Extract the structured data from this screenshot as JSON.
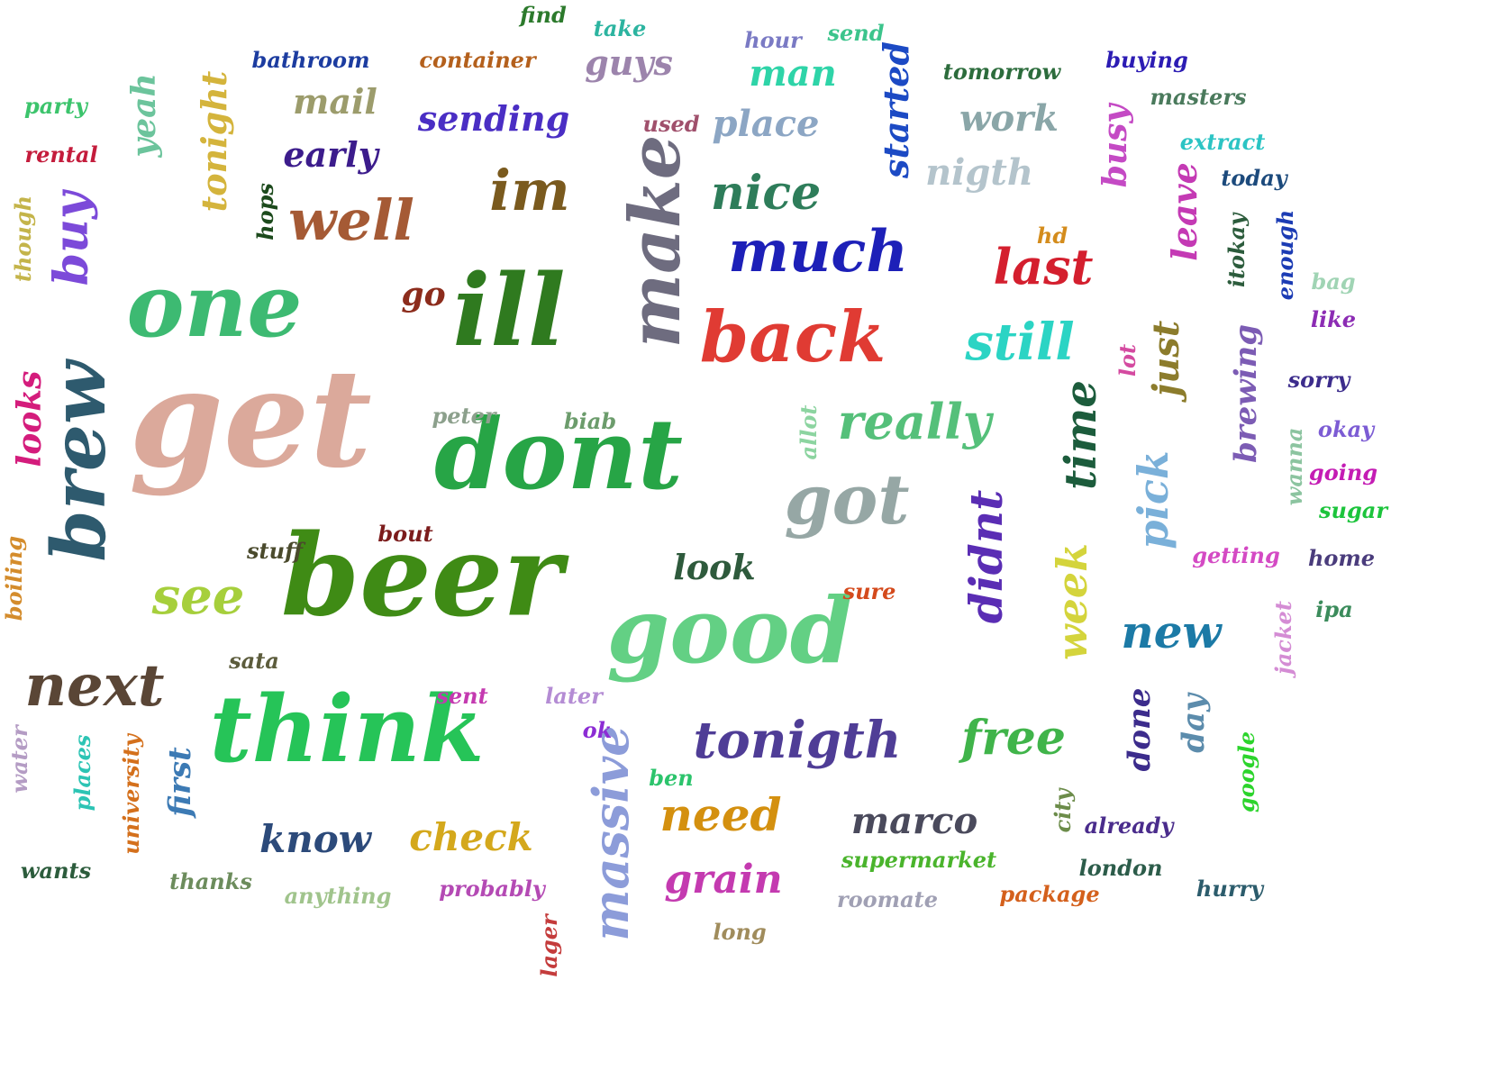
{
  "words": [
    {
      "text": "get",
      "color": "#dba99b",
      "orientation": "horizontal"
    },
    {
      "text": "beer",
      "color": "#3f8b15",
      "orientation": "horizontal"
    },
    {
      "text": "dont",
      "color": "#27a546",
      "orientation": "horizontal"
    },
    {
      "text": "think",
      "color": "#26c458",
      "orientation": "horizontal"
    },
    {
      "text": "good",
      "color": "#63d084",
      "orientation": "horizontal"
    },
    {
      "text": "one",
      "color": "#3dba72",
      "orientation": "horizontal"
    },
    {
      "text": "ill",
      "color": "#2f7a1f",
      "orientation": "horizontal"
    },
    {
      "text": "make",
      "color": "#6e6c7f",
      "orientation": "vertical"
    },
    {
      "text": "back",
      "color": "#e03b33",
      "orientation": "horizontal"
    },
    {
      "text": "brew",
      "color": "#2e5a6e",
      "orientation": "vertical"
    },
    {
      "text": "got",
      "color": "#96a7a5",
      "orientation": "horizontal"
    },
    {
      "text": "much",
      "color": "#1d20b8",
      "orientation": "horizontal"
    },
    {
      "text": "next",
      "color": "#5a4636",
      "orientation": "horizontal"
    },
    {
      "text": "well",
      "color": "#a55a35",
      "orientation": "horizontal"
    },
    {
      "text": "tonigth",
      "color": "#4f3d96",
      "orientation": "horizontal"
    },
    {
      "text": "im",
      "color": "#7a5a1e",
      "orientation": "horizontal"
    },
    {
      "text": "really",
      "color": "#55c07a",
      "orientation": "horizontal"
    },
    {
      "text": "see",
      "color": "#a6cf3c",
      "orientation": "horizontal"
    },
    {
      "text": "nice",
      "color": "#2e7d5a",
      "orientation": "horizontal"
    },
    {
      "text": "still",
      "color": "#2bd4c4",
      "orientation": "horizontal"
    },
    {
      "text": "new",
      "color": "#1c7aa6",
      "orientation": "horizontal"
    },
    {
      "text": "last",
      "color": "#d41f2e",
      "orientation": "horizontal"
    },
    {
      "text": "free",
      "color": "#40b44a",
      "orientation": "horizontal"
    },
    {
      "text": "need",
      "color": "#d4900f",
      "orientation": "horizontal"
    },
    {
      "text": "massive",
      "color": "#8c9cd9",
      "orientation": "vertical"
    },
    {
      "text": "didnt",
      "color": "#5a2db4",
      "orientation": "vertical"
    },
    {
      "text": "time",
      "color": "#1c5c3c",
      "orientation": "vertical"
    },
    {
      "text": "week",
      "color": "#d4d43c",
      "orientation": "vertical"
    },
    {
      "text": "pick",
      "color": "#7ab0d9",
      "orientation": "vertical"
    },
    {
      "text": "grain",
      "color": "#c43ab0",
      "orientation": "horizontal"
    },
    {
      "text": "know",
      "color": "#2c4a7a",
      "orientation": "horizontal"
    },
    {
      "text": "check",
      "color": "#d4a81c",
      "orientation": "horizontal"
    },
    {
      "text": "marco",
      "color": "#4a4a5c",
      "orientation": "horizontal"
    },
    {
      "text": "look",
      "color": "#2e5a3c",
      "orientation": "horizontal"
    },
    {
      "text": "man",
      "color": "#2ed4a8",
      "orientation": "horizontal"
    },
    {
      "text": "place",
      "color": "#8ca6c4",
      "orientation": "horizontal"
    },
    {
      "text": "work",
      "color": "#8aa6a8",
      "orientation": "horizontal"
    },
    {
      "text": "nigth",
      "color": "#b4c4cc",
      "orientation": "horizontal"
    },
    {
      "text": "sending",
      "color": "#4a2ec4",
      "orientation": "horizontal"
    },
    {
      "text": "early",
      "color": "#3c1c8c",
      "orientation": "horizontal"
    },
    {
      "text": "mail",
      "color": "#9c9c6c",
      "orientation": "horizontal"
    },
    {
      "text": "guys",
      "color": "#9c84ac",
      "orientation": "horizontal"
    },
    {
      "text": "buy",
      "color": "#7c4ad9",
      "orientation": "vertical"
    },
    {
      "text": "yeah",
      "color": "#6cc49c",
      "orientation": "vertical"
    },
    {
      "text": "tonight",
      "color": "#d4b43c",
      "orientation": "vertical"
    },
    {
      "text": "started",
      "color": "#1c4ac4",
      "orientation": "vertical"
    },
    {
      "text": "busy",
      "color": "#c44ac4",
      "orientation": "vertical"
    },
    {
      "text": "leave",
      "color": "#c43ab4",
      "orientation": "vertical"
    },
    {
      "text": "just",
      "color": "#8c7c2c",
      "orientation": "vertical"
    },
    {
      "text": "brewing",
      "color": "#7c5cb4",
      "orientation": "vertical"
    },
    {
      "text": "looks",
      "color": "#d41c7c",
      "orientation": "vertical"
    },
    {
      "text": "done",
      "color": "#3c2c8c",
      "orientation": "vertical"
    },
    {
      "text": "day",
      "color": "#5c8cac",
      "orientation": "vertical"
    },
    {
      "text": "first",
      "color": "#3c7ab4",
      "orientation": "vertical"
    },
    {
      "text": "go",
      "color": "#8c2c1c",
      "orientation": "horizontal"
    },
    {
      "text": "find",
      "color": "#2c7a2c",
      "orientation": "horizontal"
    },
    {
      "text": "take",
      "color": "#2cb4a0",
      "orientation": "horizontal"
    },
    {
      "text": "hour",
      "color": "#7a7ac4",
      "orientation": "horizontal"
    },
    {
      "text": "send",
      "color": "#3cc48c",
      "orientation": "horizontal"
    },
    {
      "text": "bathroom",
      "color": "#1c3ca0",
      "orientation": "horizontal"
    },
    {
      "text": "container",
      "color": "#b4601c",
      "orientation": "horizontal"
    },
    {
      "text": "tomorrow",
      "color": "#2c6c3c",
      "orientation": "horizontal"
    },
    {
      "text": "buying",
      "color": "#2c1cb4",
      "orientation": "horizontal"
    },
    {
      "text": "masters",
      "color": "#4a7a5c",
      "orientation": "horizontal"
    },
    {
      "text": "party",
      "color": "#3cc46c",
      "orientation": "horizontal"
    },
    {
      "text": "rental",
      "color": "#c41c3c",
      "orientation": "horizontal"
    },
    {
      "text": "used",
      "color": "#a0506c",
      "orientation": "horizontal"
    },
    {
      "text": "extract",
      "color": "#2cc4c4",
      "orientation": "horizontal"
    },
    {
      "text": "today",
      "color": "#1c4a7c",
      "orientation": "horizontal"
    },
    {
      "text": "hd",
      "color": "#d48c1c",
      "orientation": "horizontal"
    },
    {
      "text": "bag",
      "color": "#a0d4b4",
      "orientation": "horizontal"
    },
    {
      "text": "like",
      "color": "#8c2cb4",
      "orientation": "horizontal"
    },
    {
      "text": "sorry",
      "color": "#3c2c8c",
      "orientation": "horizontal"
    },
    {
      "text": "okay",
      "color": "#7c5cd4",
      "orientation": "horizontal"
    },
    {
      "text": "going",
      "color": "#c41cb4",
      "orientation": "horizontal"
    },
    {
      "text": "sugar",
      "color": "#1cc43c",
      "orientation": "horizontal"
    },
    {
      "text": "getting",
      "color": "#d44ac4",
      "orientation": "horizontal"
    },
    {
      "text": "home",
      "color": "#4a3c7c",
      "orientation": "horizontal"
    },
    {
      "text": "ipa",
      "color": "#3c8c5c",
      "orientation": "horizontal"
    },
    {
      "text": "peter",
      "color": "#8ca08c",
      "orientation": "horizontal"
    },
    {
      "text": "biab",
      "color": "#6c9c6c",
      "orientation": "horizontal"
    },
    {
      "text": "bout",
      "color": "#7c1c1c",
      "orientation": "horizontal"
    },
    {
      "text": "stuff",
      "color": "#4a4a2c",
      "orientation": "horizontal"
    },
    {
      "text": "sure",
      "color": "#d44a1c",
      "orientation": "horizontal"
    },
    {
      "text": "sata",
      "color": "#5c5c3c",
      "orientation": "horizontal"
    },
    {
      "text": "sent",
      "color": "#c43ab0",
      "orientation": "horizontal"
    },
    {
      "text": "later",
      "color": "#b48cd4",
      "orientation": "horizontal"
    },
    {
      "text": "ok",
      "color": "#8c2cd4",
      "orientation": "horizontal"
    },
    {
      "text": "ben",
      "color": "#2cc46c",
      "orientation": "horizontal"
    },
    {
      "text": "wants",
      "color": "#2c5c3c",
      "orientation": "horizontal"
    },
    {
      "text": "thanks",
      "color": "#6c8c5c",
      "orientation": "horizontal"
    },
    {
      "text": "anything",
      "color": "#a0c48c",
      "orientation": "horizontal"
    },
    {
      "text": "probably",
      "color": "#b44ab4",
      "orientation": "horizontal"
    },
    {
      "text": "long",
      "color": "#a08c5c",
      "orientation": "horizontal"
    },
    {
      "text": "supermarket",
      "color": "#4ab42c",
      "orientation": "horizontal"
    },
    {
      "text": "roomate",
      "color": "#a0a0b4",
      "orientation": "horizontal"
    },
    {
      "text": "package",
      "color": "#d4601c",
      "orientation": "horizontal"
    },
    {
      "text": "already",
      "color": "#4a2c8c",
      "orientation": "horizontal"
    },
    {
      "text": "london",
      "color": "#2c5c4a",
      "orientation": "horizontal"
    },
    {
      "text": "hurry",
      "color": "#2c5c6c",
      "orientation": "horizontal"
    },
    {
      "text": "though",
      "color": "#c4b44a",
      "orientation": "vertical"
    },
    {
      "text": "hops",
      "color": "#1c4a1c",
      "orientation": "vertical"
    },
    {
      "text": "allot",
      "color": "#8cd4a0",
      "orientation": "vertical"
    },
    {
      "text": "lot",
      "color": "#d44aa0",
      "orientation": "vertical"
    },
    {
      "text": "itokay",
      "color": "#2c5c3c",
      "orientation": "vertical"
    },
    {
      "text": "enough",
      "color": "#1c3cb4",
      "orientation": "vertical"
    },
    {
      "text": "wanna",
      "color": "#8cc4a0",
      "orientation": "vertical"
    },
    {
      "text": "jacket",
      "color": "#d48cd4",
      "orientation": "vertical"
    },
    {
      "text": "boiling",
      "color": "#d48c2c",
      "orientation": "vertical"
    },
    {
      "text": "water",
      "color": "#b49cc4",
      "orientation": "vertical"
    },
    {
      "text": "places",
      "color": "#2cc4b4",
      "orientation": "vertical"
    },
    {
      "text": "university",
      "color": "#d4701c",
      "orientation": "vertical"
    },
    {
      "text": "city",
      "color": "#6c8c4a",
      "orientation": "vertical"
    },
    {
      "text": "google",
      "color": "#2cd42c",
      "orientation": "vertical"
    },
    {
      "text": "lager",
      "color": "#c43c3c",
      "orientation": "vertical"
    }
  ]
}
